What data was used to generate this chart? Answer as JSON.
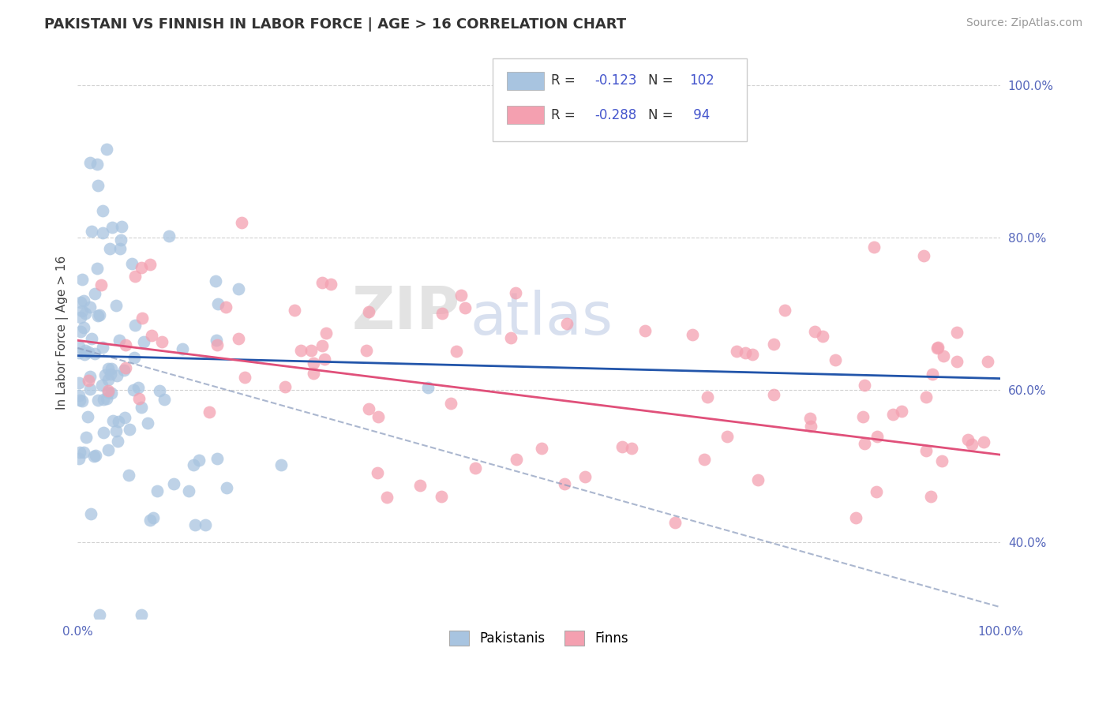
{
  "title": "PAKISTANI VS FINNISH IN LABOR FORCE | AGE > 16 CORRELATION CHART",
  "source": "Source: ZipAtlas.com",
  "ylabel": "In Labor Force | Age > 16",
  "xlim": [
    0.0,
    1.0
  ],
  "ylim": [
    0.3,
    1.05
  ],
  "blue_R": -0.123,
  "blue_N": 102,
  "pink_R": -0.288,
  "pink_N": 94,
  "blue_color": "#a8c4e0",
  "pink_color": "#f4a0b0",
  "blue_line_color": "#2255aa",
  "pink_line_color": "#e0507a",
  "dash_line_color": "#8899bb",
  "grid_color": "#cccccc",
  "watermark_zip": "ZIP",
  "watermark_atlas": "atlas",
  "right_ytick_labels": [
    "40.0%",
    "60.0%",
    "80.0%",
    "100.0%"
  ],
  "right_ytick_values": [
    0.4,
    0.6,
    0.8,
    1.0
  ],
  "xtick_labels": [
    "0.0%",
    "100.0%"
  ],
  "xtick_values": [
    0.0,
    1.0
  ],
  "blue_line_x0": 0.0,
  "blue_line_y0": 0.645,
  "blue_line_x1": 1.0,
  "blue_line_y1": 0.615,
  "pink_line_x0": 0.0,
  "pink_line_y0": 0.665,
  "pink_line_x1": 1.0,
  "pink_line_y1": 0.515,
  "dash_line_x0": 0.0,
  "dash_line_y0": 0.655,
  "dash_line_x1": 1.0,
  "dash_line_y1": 0.315
}
